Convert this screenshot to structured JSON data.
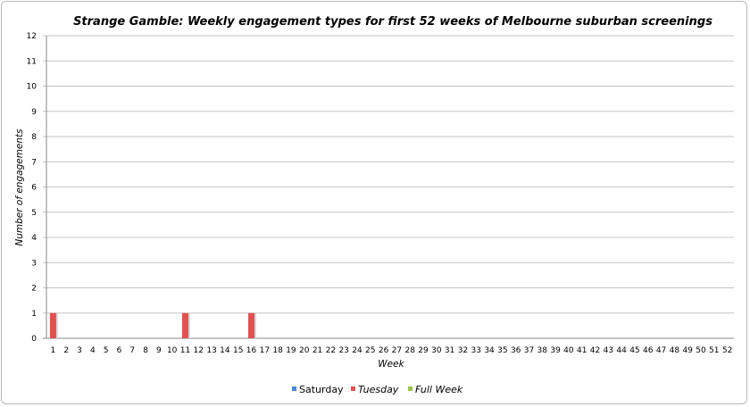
{
  "chart_data": {
    "type": "bar",
    "title": "Strange Gamble: Weekly engagement types for first 52 weeks of Melbourne suburban screenings",
    "xlabel": "Week",
    "ylabel": "Number of engagements",
    "ylim": [
      0,
      12
    ],
    "yticks": [
      0,
      1,
      2,
      3,
      4,
      5,
      6,
      7,
      8,
      9,
      10,
      11,
      12
    ],
    "grid": true,
    "legend": "bottom",
    "categories": [
      1,
      2,
      3,
      4,
      5,
      6,
      7,
      8,
      9,
      10,
      11,
      12,
      13,
      14,
      15,
      16,
      17,
      18,
      19,
      20,
      21,
      22,
      23,
      24,
      25,
      26,
      27,
      28,
      29,
      30,
      31,
      32,
      33,
      34,
      35,
      36,
      37,
      38,
      39,
      40,
      41,
      42,
      43,
      44,
      45,
      46,
      47,
      48,
      49,
      50,
      51,
      52
    ],
    "series": [
      {
        "name": "Saturday",
        "color": "#4a86d8",
        "italic": false,
        "values": [
          0,
          0,
          0,
          0,
          0,
          0,
          0,
          0,
          0,
          0,
          0,
          0,
          0,
          0,
          0,
          0,
          0,
          0,
          0,
          0,
          0,
          0,
          0,
          0,
          0,
          0,
          0,
          0,
          0,
          0,
          0,
          0,
          0,
          0,
          0,
          0,
          0,
          0,
          0,
          0,
          0,
          0,
          0,
          0,
          0,
          0,
          0,
          0,
          0,
          0,
          0,
          0
        ]
      },
      {
        "name": "Tuesday",
        "color": "#e0524f",
        "italic": true,
        "values": [
          1,
          0,
          0,
          0,
          0,
          0,
          0,
          0,
          0,
          0,
          1,
          0,
          0,
          0,
          0,
          1,
          0,
          0,
          0,
          0,
          0,
          0,
          0,
          0,
          0,
          0,
          0,
          0,
          0,
          0,
          0,
          0,
          0,
          0,
          0,
          0,
          0,
          0,
          0,
          0,
          0,
          0,
          0,
          0,
          0,
          0,
          0,
          0,
          0,
          0,
          0,
          0
        ]
      },
      {
        "name": "Full Week",
        "color": "#9bc34f",
        "italic": true,
        "values": [
          0,
          0,
          0,
          0,
          0,
          0,
          0,
          0,
          0,
          0,
          0,
          0,
          0,
          0,
          0,
          0,
          0,
          0,
          0,
          0,
          0,
          0,
          0,
          0,
          0,
          0,
          0,
          0,
          0,
          0,
          0,
          0,
          0,
          0,
          0,
          0,
          0,
          0,
          0,
          0,
          0,
          0,
          0,
          0,
          0,
          0,
          0,
          0,
          0,
          0,
          0,
          0
        ]
      }
    ]
  }
}
